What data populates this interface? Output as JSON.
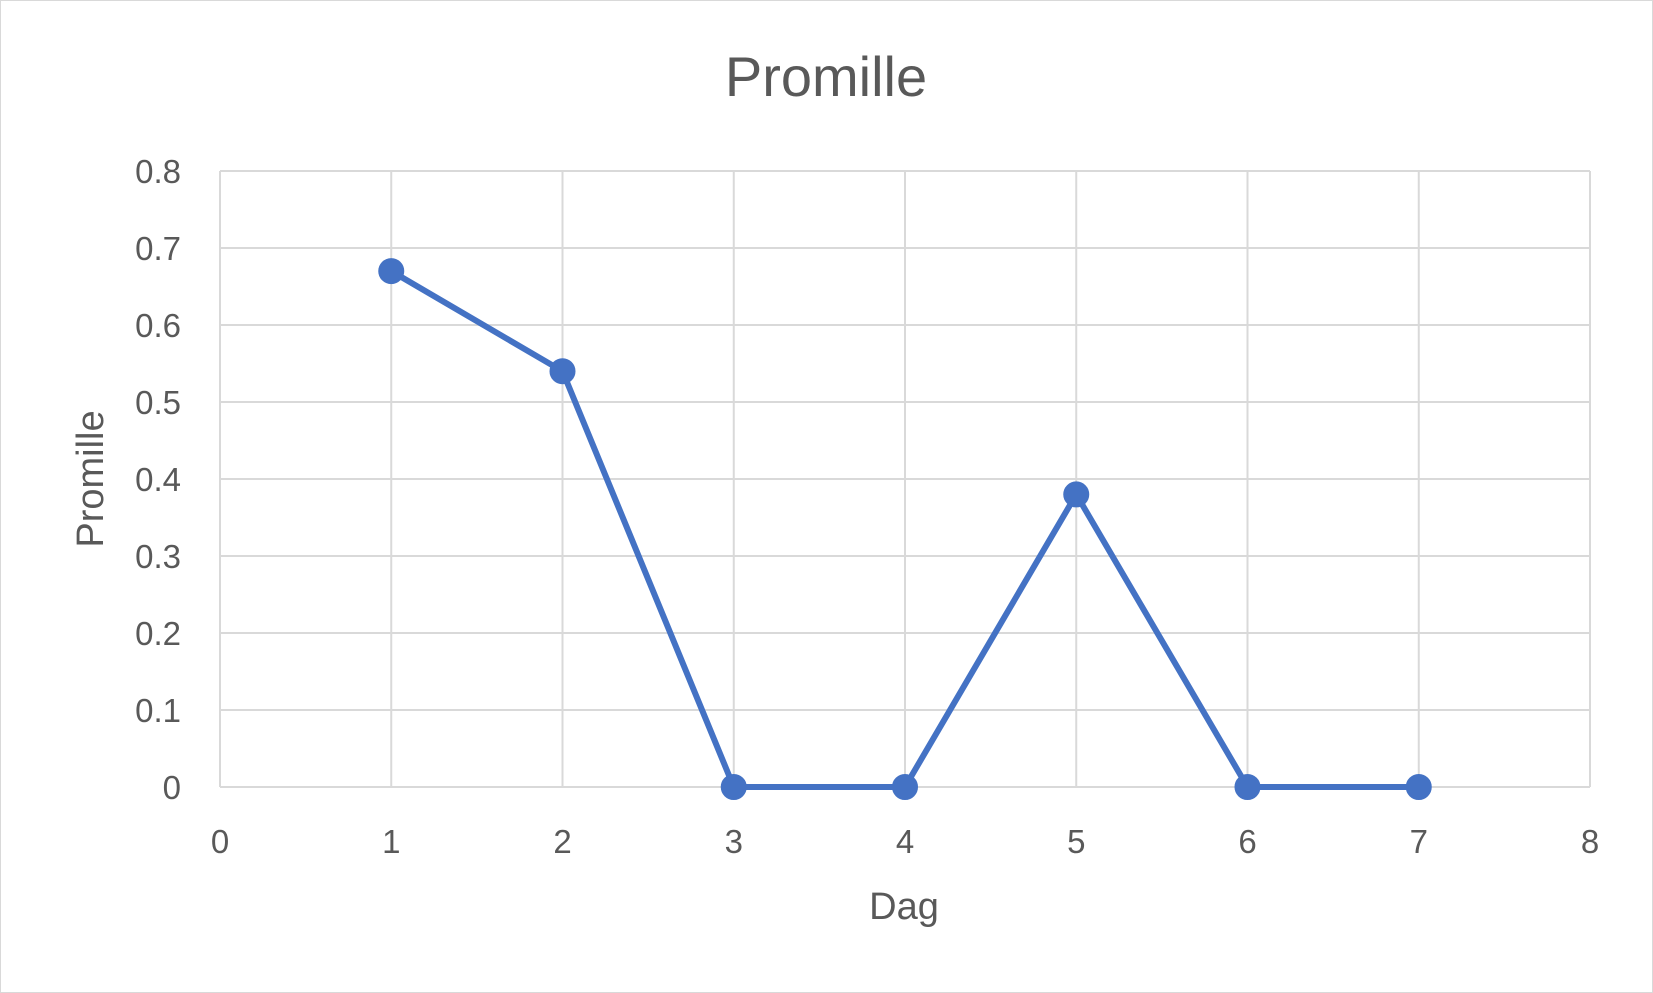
{
  "chart_data": {
    "type": "scatter",
    "title": "Promille",
    "xlabel": "Dag",
    "ylabel": "Promille",
    "xlim": [
      0,
      8
    ],
    "ylim": [
      0,
      0.8
    ],
    "x_ticks": [
      "0",
      "1",
      "2",
      "3",
      "4",
      "5",
      "6",
      "7",
      "8"
    ],
    "y_ticks": [
      "0",
      "0.1",
      "0.2",
      "0.3",
      "0.4",
      "0.5",
      "0.6",
      "0.7",
      "0.8"
    ],
    "grid": true,
    "series": [
      {
        "color": "#4472c4",
        "points": [
          {
            "x": 1,
            "y": 0.67
          },
          {
            "x": 2,
            "y": 0.54
          },
          {
            "x": 3,
            "y": 0
          },
          {
            "x": 4,
            "y": 0
          },
          {
            "x": 5,
            "y": 0.38
          },
          {
            "x": 6,
            "y": 0
          },
          {
            "x": 7,
            "y": 0
          }
        ]
      }
    ]
  }
}
